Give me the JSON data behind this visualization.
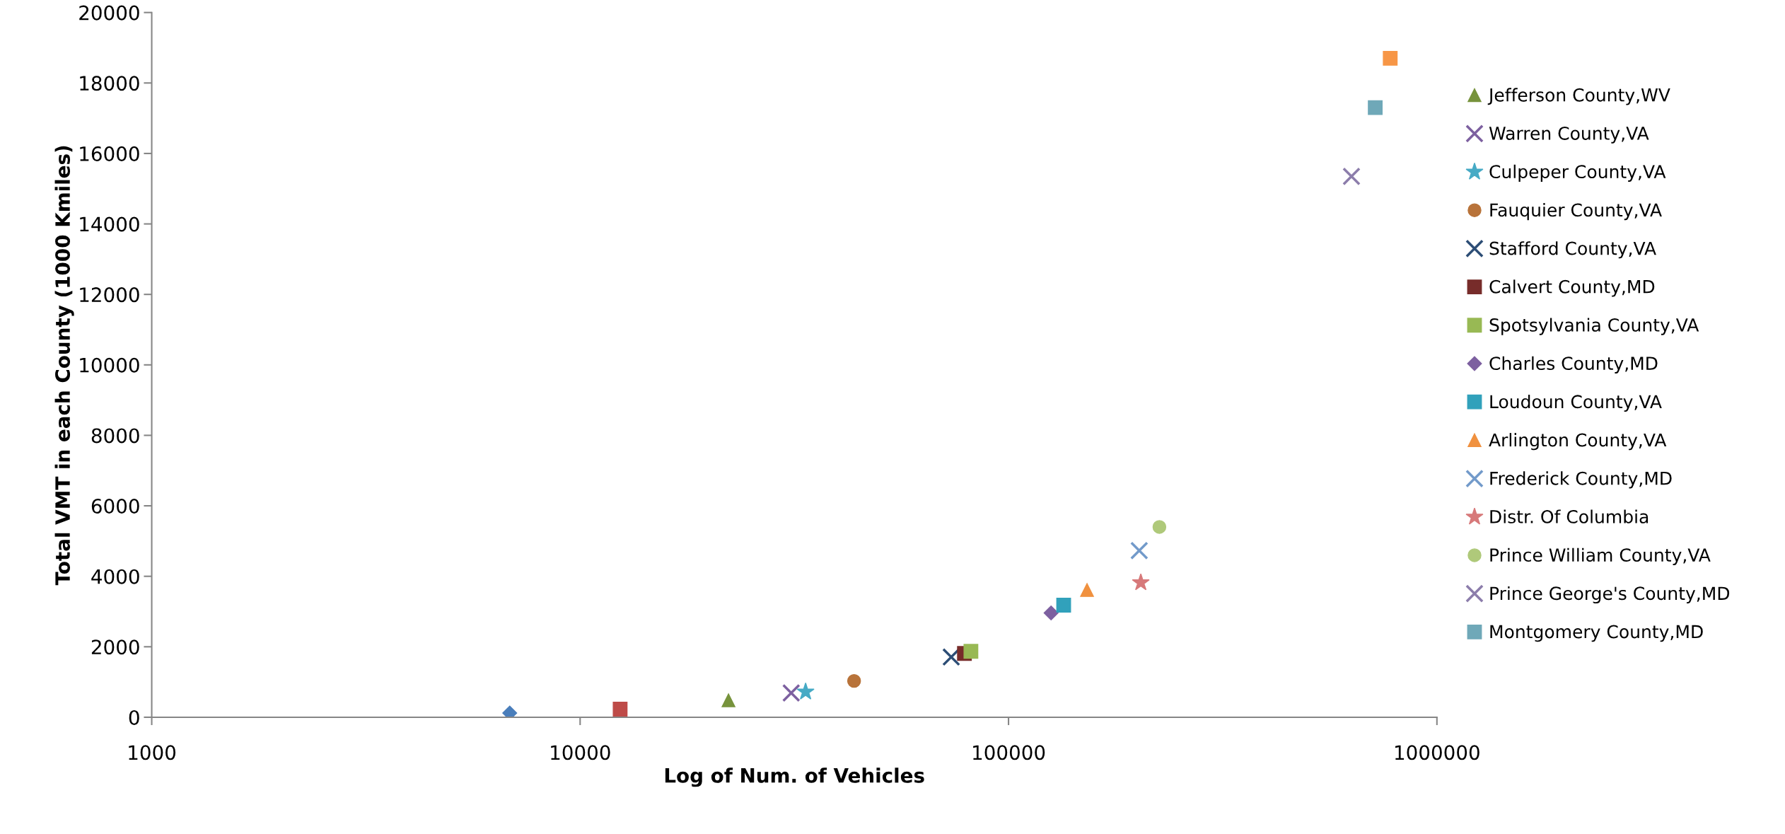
{
  "chart_data": {
    "type": "scatter",
    "xlabel": "Log of Num. of Vehicles",
    "ylabel": "Total VMT in each County (1000 Kmiles)",
    "log": "x",
    "xlim": [
      1000,
      1000000
    ],
    "xticks": [
      1000,
      10000,
      100000,
      1000000
    ],
    "ylim": [
      0,
      20000
    ],
    "yticks": [
      0,
      2000,
      4000,
      6000,
      8000,
      10000,
      12000,
      14000,
      16000,
      18000,
      20000
    ],
    "grid": false,
    "legend": "right",
    "series": [
      {
        "color": "#4a7ebb",
        "marker": "diamond",
        "x": [
          6850
        ],
        "values": [
          120
        ]
      },
      {
        "color": "#be4b48",
        "marker": "square",
        "x": [
          12400
        ],
        "values": [
          230
        ]
      },
      {
        "name": "Jefferson County,WV",
        "color": "#77933c",
        "marker": "triangle",
        "x": [
          22200
        ],
        "values": [
          480
        ]
      },
      {
        "name": "Warren County,VA",
        "color": "#7d60a0",
        "marker": "cross",
        "x": [
          31100
        ],
        "values": [
          690
        ]
      },
      {
        "name": "Culpeper County,VA",
        "color": "#46aac5",
        "marker": "star",
        "x": [
          33600
        ],
        "values": [
          720
        ]
      },
      {
        "name": "Fauquier County,VA",
        "color": "#b8733a",
        "marker": "circle",
        "x": [
          43600
        ],
        "values": [
          1030
        ]
      },
      {
        "name": "Stafford County,VA",
        "color": "#2c4d75",
        "marker": "cross",
        "x": [
          73500
        ],
        "values": [
          1710
        ]
      },
      {
        "name": "Calvert County,MD",
        "color": "#772c2a",
        "marker": "square",
        "x": [
          78900
        ],
        "values": [
          1810
        ]
      },
      {
        "name": "Spotsylvania County,VA",
        "color": "#98b954",
        "marker": "square",
        "x": [
          81700
        ],
        "values": [
          1870
        ]
      },
      {
        "name": "Charles County,MD",
        "color": "#7d60a0",
        "marker": "diamond",
        "x": [
          125700
        ],
        "values": [
          2960
        ]
      },
      {
        "name": "Loudoun County,VA",
        "color": "#31a1bb",
        "marker": "square",
        "x": [
          134500
        ],
        "values": [
          3180
        ]
      },
      {
        "name": "Arlington County,VA",
        "color": "#f0913f",
        "marker": "triangle",
        "x": [
          152500
        ],
        "values": [
          3610
        ]
      },
      {
        "name": "Frederick County,MD",
        "color": "#729aca",
        "marker": "cross",
        "x": [
          201900
        ],
        "values": [
          4730
        ]
      },
      {
        "name": "Distr. Of Columbia",
        "color": "#d7797a",
        "marker": "star",
        "x": [
          203600
        ],
        "values": [
          3820
        ]
      },
      {
        "name": "Prince William County,VA",
        "color": "#afc97a",
        "marker": "circle",
        "x": [
          225000
        ],
        "values": [
          5400
        ]
      },
      {
        "name": "Prince George's County,MD",
        "color": "#8c7dab",
        "marker": "cross",
        "x": [
          631700
        ],
        "values": [
          15350
        ]
      },
      {
        "name": "Montgomery County,MD",
        "color": "#6fa8b8",
        "marker": "square",
        "x": [
          717800
        ],
        "values": [
          17300
        ]
      },
      {
        "color": "#f79646",
        "marker": "square",
        "x": [
          778000
        ],
        "values": [
          18700
        ]
      }
    ]
  }
}
